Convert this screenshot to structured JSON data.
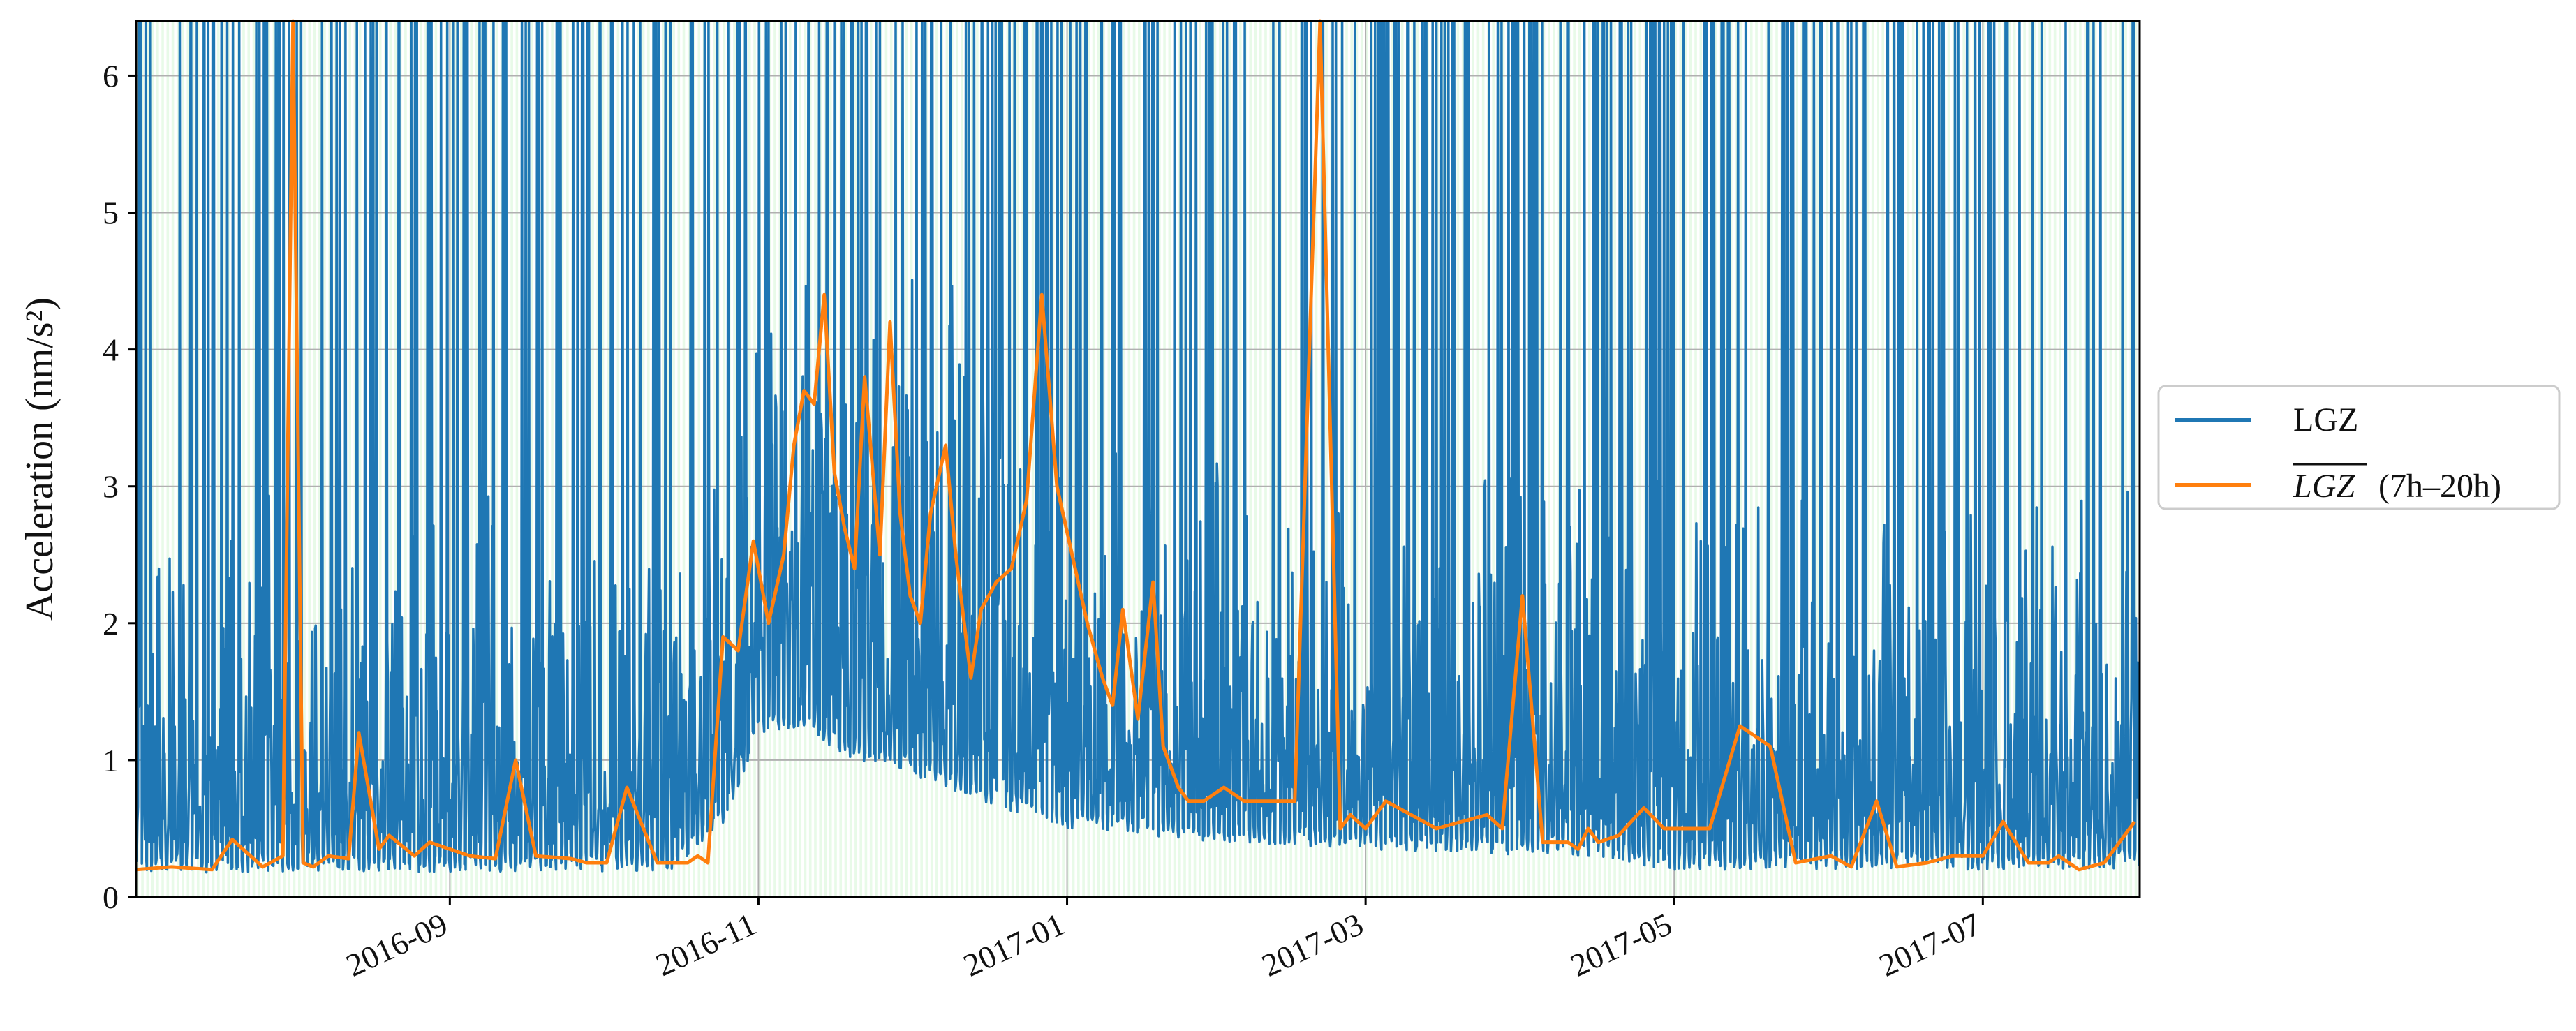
{
  "chart_data": {
    "type": "line",
    "ylabel": "Acceleration (nm/s²)",
    "ylim": [
      0,
      6.4
    ],
    "xlim": [
      "2016-07-01",
      "2017-08-01"
    ],
    "yticks": [
      0,
      1,
      2,
      3,
      4,
      5,
      6
    ],
    "xticks": [
      "2016-09",
      "2016-11",
      "2017-01",
      "2017-03",
      "2017-05",
      "2017-07"
    ],
    "grid": true,
    "legend_position": "outside-right",
    "background_shading": "alternating light-green daily bands",
    "series": [
      {
        "name": "LGZ",
        "color": "#1f77b4",
        "envelope": {
          "x": [
            "2016-07-01",
            "2016-08-01",
            "2016-09-01",
            "2016-10-01",
            "2016-10-15",
            "2016-10-25",
            "2016-11-01",
            "2016-11-10",
            "2016-11-20",
            "2016-12-01",
            "2016-12-15",
            "2017-01-01",
            "2017-01-15",
            "2017-02-01",
            "2017-03-01",
            "2017-04-01",
            "2017-04-15",
            "2017-04-20",
            "2017-05-01",
            "2017-06-01",
            "2017-07-01",
            "2017-08-01"
          ],
          "floor": [
            0.18,
            0.18,
            0.18,
            0.18,
            0.2,
            0.5,
            1.2,
            1.2,
            1.0,
            0.9,
            0.7,
            0.5,
            0.45,
            0.4,
            0.35,
            0.3,
            0.3,
            0.25,
            0.2,
            0.2,
            0.2,
            0.2
          ]
        }
      },
      {
        "name": "LGZ (7h–20h)",
        "legend_overline": "LGZ",
        "legend_suffix": "(7h–20h)",
        "color": "#ff7f0e",
        "x": [
          "2016-07-01",
          "2016-07-08",
          "2016-07-16",
          "2016-07-20",
          "2016-07-26",
          "2016-07-30",
          "2016-08-01",
          "2016-08-03",
          "2016-08-05",
          "2016-08-08",
          "2016-08-12",
          "2016-08-14",
          "2016-08-18",
          "2016-08-20",
          "2016-08-25",
          "2016-08-28",
          "2016-09-01",
          "2016-09-05",
          "2016-09-10",
          "2016-09-14",
          "2016-09-18",
          "2016-09-25",
          "2016-09-28",
          "2016-10-02",
          "2016-10-06",
          "2016-10-12",
          "2016-10-18",
          "2016-10-20",
          "2016-10-22",
          "2016-10-25",
          "2016-10-28",
          "2016-10-31",
          "2016-11-03",
          "2016-11-06",
          "2016-11-08",
          "2016-11-10",
          "2016-11-12",
          "2016-11-14",
          "2016-11-16",
          "2016-11-18",
          "2016-11-20",
          "2016-11-22",
          "2016-11-25",
          "2016-11-27",
          "2016-11-29",
          "2016-12-01",
          "2016-12-03",
          "2016-12-05",
          "2016-12-08",
          "2016-12-10",
          "2016-12-13",
          "2016-12-15",
          "2016-12-18",
          "2016-12-21",
          "2016-12-24",
          "2016-12-27",
          "2016-12-30",
          "2017-01-02",
          "2017-01-05",
          "2017-01-08",
          "2017-01-10",
          "2017-01-12",
          "2017-01-15",
          "2017-01-18",
          "2017-01-20",
          "2017-01-21",
          "2017-01-23",
          "2017-01-25",
          "2017-01-28",
          "2017-02-01",
          "2017-02-05",
          "2017-02-10",
          "2017-02-15",
          "2017-02-20",
          "2017-02-24",
          "2017-02-26",
          "2017-03-01",
          "2017-03-05",
          "2017-03-10",
          "2017-03-15",
          "2017-03-20",
          "2017-03-25",
          "2017-03-28",
          "2017-04-01",
          "2017-04-05",
          "2017-04-10",
          "2017-04-12",
          "2017-04-14",
          "2017-04-16",
          "2017-04-20",
          "2017-04-25",
          "2017-04-29",
          "2017-05-03",
          "2017-05-08",
          "2017-05-14",
          "2017-05-20",
          "2017-05-25",
          "2017-06-01",
          "2017-06-05",
          "2017-06-10",
          "2017-06-14",
          "2017-06-20",
          "2017-06-25",
          "2017-07-01",
          "2017-07-05",
          "2017-07-10",
          "2017-07-14",
          "2017-07-16",
          "2017-07-18",
          "2017-07-20",
          "2017-07-25",
          "2017-07-31"
        ],
        "y": [
          0.2,
          0.22,
          0.2,
          0.42,
          0.22,
          0.3,
          6.4,
          0.25,
          0.22,
          0.3,
          0.28,
          1.2,
          0.35,
          0.45,
          0.3,
          0.4,
          0.35,
          0.3,
          0.28,
          1.0,
          0.3,
          0.28,
          0.25,
          0.25,
          0.8,
          0.25,
          0.25,
          0.3,
          0.25,
          1.9,
          1.8,
          2.6,
          2.0,
          2.5,
          3.3,
          3.7,
          3.6,
          4.4,
          3.1,
          2.7,
          2.4,
          3.8,
          2.5,
          4.2,
          2.8,
          2.2,
          2.0,
          2.8,
          3.3,
          2.5,
          1.6,
          2.1,
          2.3,
          2.4,
          2.9,
          4.4,
          3.0,
          2.5,
          2.0,
          1.6,
          1.4,
          2.1,
          1.3,
          2.3,
          1.1,
          1.0,
          0.8,
          0.7,
          0.7,
          0.8,
          0.7,
          0.7,
          0.7,
          6.4,
          0.5,
          0.6,
          0.5,
          0.7,
          0.6,
          0.5,
          0.55,
          0.6,
          0.5,
          2.2,
          0.4,
          0.4,
          0.35,
          0.5,
          0.4,
          0.45,
          0.65,
          0.5,
          0.5,
          0.5,
          1.25,
          1.1,
          0.25,
          0.3,
          0.22,
          0.7,
          0.22,
          0.25,
          0.3,
          0.3,
          0.55,
          0.25,
          0.25,
          0.3,
          0.25,
          0.2,
          0.25,
          0.55
        ]
      }
    ]
  },
  "legend": {
    "entries": [
      {
        "label": "LGZ",
        "color": "#1f77b4"
      },
      {
        "label_overline": "LGZ",
        "label_suffix": "(7h–20h)",
        "color": "#ff7f0e"
      }
    ]
  }
}
